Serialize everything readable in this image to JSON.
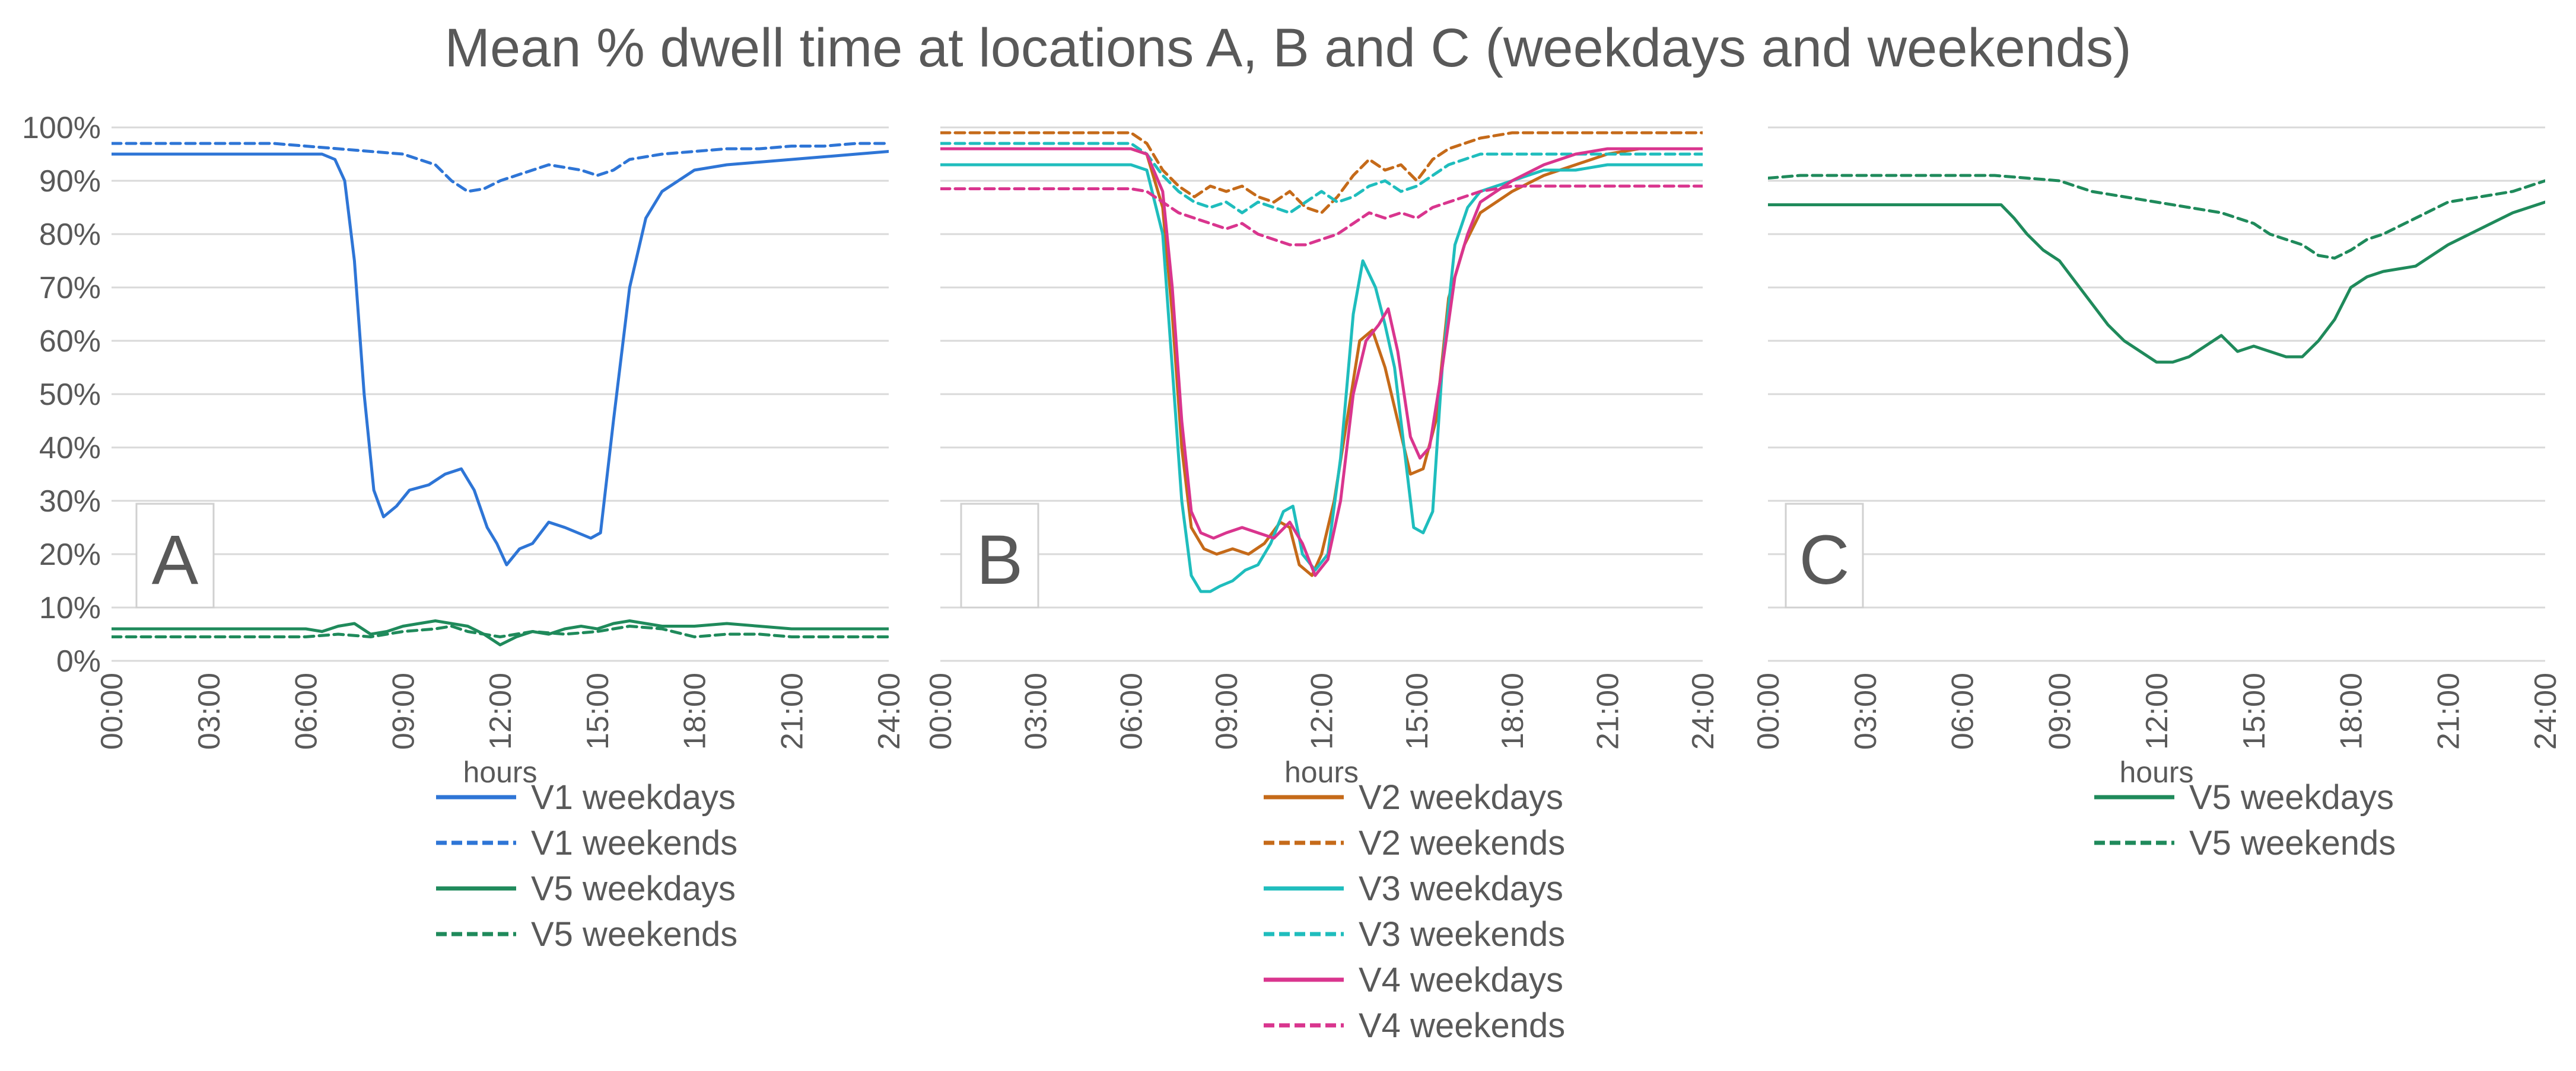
{
  "chart_title": "Mean % dwell time at locations A, B and C (weekdays and weekends)",
  "chart_data": [
    {
      "type": "line",
      "panel": "A",
      "xlabel": "hours",
      "ylabel": "",
      "ylim": [
        0,
        100
      ],
      "xlim": [
        0,
        24
      ],
      "x_ticks": [
        "00:00",
        "03:00",
        "06:00",
        "09:00",
        "12:00",
        "15:00",
        "18:00",
        "21:00",
        "24:00"
      ],
      "y_ticks": [
        "0%",
        "10%",
        "20%",
        "30%",
        "40%",
        "50%",
        "60%",
        "70%",
        "80%",
        "90%",
        "100%"
      ],
      "grid": true,
      "legend_position": "bottom",
      "series": [
        {
          "name": "V1 weekdays",
          "color": "#2e75d6",
          "dash": "solid",
          "x": [
            0,
            5,
            6.5,
            6.9,
            7.2,
            7.5,
            7.8,
            8.1,
            8.4,
            8.8,
            9.2,
            9.8,
            10.3,
            10.8,
            11.2,
            11.6,
            11.9,
            12.2,
            12.6,
            13,
            13.5,
            14,
            14.4,
            14.8,
            15.1,
            15.5,
            16,
            16.5,
            17,
            18,
            19,
            20,
            21,
            22,
            23,
            24
          ],
          "values": [
            95,
            95,
            95,
            94,
            90,
            75,
            50,
            32,
            27,
            29,
            32,
            33,
            35,
            36,
            32,
            25,
            22,
            18,
            21,
            22,
            26,
            25,
            24,
            23,
            24,
            45,
            70,
            83,
            88,
            92,
            93,
            93.5,
            94,
            94.5,
            95,
            95.5
          ]
        },
        {
          "name": "V1 weekends",
          "color": "#2e75d6",
          "dash": "dashed",
          "x": [
            0,
            5,
            6,
            7,
            8,
            9,
            10,
            10.5,
            11,
            11.5,
            12,
            12.5,
            13,
            13.5,
            14,
            14.5,
            15,
            15.5,
            16,
            17,
            18,
            19,
            20,
            21,
            22,
            23,
            24
          ],
          "values": [
            97,
            97,
            96.5,
            96,
            95.5,
            95,
            93,
            90,
            88,
            88.5,
            90,
            91,
            92,
            93,
            92.5,
            92,
            91,
            92,
            94,
            95,
            95.5,
            96,
            96,
            96.5,
            96.5,
            97,
            97
          ]
        },
        {
          "name": "V5 weekdays",
          "color": "#1f8a5b",
          "dash": "solid",
          "x": [
            0,
            6,
            6.5,
            7,
            7.5,
            8,
            8.5,
            9,
            9.5,
            10,
            10.5,
            11,
            11.5,
            12,
            12.5,
            13,
            13.5,
            14,
            14.5,
            15,
            15.5,
            16,
            16.5,
            17,
            18,
            19,
            20,
            21,
            22,
            23,
            24
          ],
          "values": [
            6,
            6,
            5.5,
            6.5,
            7,
            5,
            5.5,
            6.5,
            7,
            7.5,
            7,
            6.5,
            5,
            3,
            4.5,
            5.5,
            5,
            6,
            6.5,
            6,
            7,
            7.5,
            7,
            6.5,
            6.5,
            7,
            6.5,
            6,
            6,
            6,
            6
          ]
        },
        {
          "name": "V5 weekends",
          "color": "#1f8a5b",
          "dash": "dashed",
          "x": [
            0,
            6,
            7,
            8,
            9,
            10,
            10.5,
            11,
            11.5,
            12,
            12.5,
            13,
            14,
            15,
            16,
            17,
            18,
            19,
            20,
            21,
            22,
            23,
            24
          ],
          "values": [
            4.5,
            4.5,
            5,
            4.5,
            5.5,
            6,
            6.5,
            5.5,
            5,
            4.5,
            5,
            5.5,
            5,
            5.5,
            6.5,
            6,
            4.5,
            5,
            5,
            4.5,
            4.5,
            4.5,
            4.5
          ]
        }
      ]
    },
    {
      "type": "line",
      "panel": "B",
      "xlabel": "hours",
      "ylabel": "",
      "ylim": [
        0,
        100
      ],
      "xlim": [
        0,
        24
      ],
      "x_ticks": [
        "00:00",
        "03:00",
        "06:00",
        "09:00",
        "12:00",
        "15:00",
        "18:00",
        "21:00",
        "24:00"
      ],
      "y_ticks": [
        "0%",
        "10%",
        "20%",
        "30%",
        "40%",
        "50%",
        "60%",
        "70%",
        "80%",
        "90%",
        "100%"
      ],
      "grid": true,
      "legend_position": "bottom",
      "series": [
        {
          "name": "V2 weekdays",
          "color": "#c56a19",
          "dash": "solid",
          "x": [
            0,
            6,
            6.5,
            7,
            7.3,
            7.6,
            7.9,
            8.3,
            8.7,
            9.2,
            9.7,
            10.2,
            10.7,
            11,
            11.3,
            11.7,
            12,
            12.4,
            12.8,
            13.2,
            13.6,
            14,
            14.4,
            14.8,
            15.2,
            15.6,
            16,
            16.5,
            17,
            18,
            19,
            20,
            21,
            22,
            23,
            24
          ],
          "values": [
            96,
            96,
            95,
            85,
            65,
            40,
            25,
            21,
            20,
            21,
            20,
            22,
            26,
            25,
            18,
            16,
            20,
            30,
            45,
            60,
            62,
            55,
            45,
            35,
            36,
            45,
            68,
            78,
            84,
            88,
            91,
            93,
            95,
            96,
            96,
            96
          ]
        },
        {
          "name": "V2 weekends",
          "color": "#c56a19",
          "dash": "dashed",
          "x": [
            0,
            6,
            6.5,
            7,
            7.5,
            8,
            8.5,
            9,
            9.5,
            10,
            10.5,
            11,
            11.5,
            12,
            12.5,
            13,
            13.5,
            14,
            14.5,
            15,
            15.5,
            16,
            17,
            18,
            19,
            20,
            21,
            22,
            23,
            24
          ],
          "values": [
            99,
            99,
            97,
            92,
            89,
            87,
            89,
            88,
            89,
            87,
            86,
            88,
            85,
            84,
            87,
            91,
            94,
            92,
            93,
            90,
            94,
            96,
            98,
            99,
            99,
            99,
            99,
            99,
            99,
            99
          ]
        },
        {
          "name": "V3 weekdays",
          "color": "#1fbdbd",
          "dash": "solid",
          "x": [
            0,
            6,
            6.5,
            7,
            7.3,
            7.6,
            7.9,
            8.2,
            8.5,
            8.8,
            9.2,
            9.6,
            10,
            10.4,
            10.8,
            11.1,
            11.4,
            11.8,
            12.2,
            12.6,
            13,
            13.3,
            13.7,
            14,
            14.3,
            14.6,
            14.9,
            15.2,
            15.5,
            15.8,
            16.2,
            16.6,
            17,
            18,
            19,
            20,
            21,
            22,
            23,
            24
          ],
          "values": [
            93,
            93,
            92,
            80,
            55,
            30,
            16,
            13,
            13,
            14,
            15,
            17,
            18,
            22,
            28,
            29,
            20,
            17,
            20,
            38,
            65,
            75,
            70,
            63,
            55,
            40,
            25,
            24,
            28,
            55,
            78,
            85,
            88,
            90,
            92,
            92,
            93,
            93,
            93,
            93
          ]
        },
        {
          "name": "V3 weekends",
          "color": "#1fbdbd",
          "dash": "dashed",
          "x": [
            0,
            6,
            6.5,
            7,
            7.5,
            8,
            8.5,
            9,
            9.5,
            10,
            10.5,
            11,
            11.5,
            12,
            12.5,
            13,
            13.5,
            14,
            14.5,
            15,
            15.5,
            16,
            16.5,
            17,
            18,
            19,
            20,
            21,
            22,
            23,
            24
          ],
          "values": [
            97,
            97,
            95,
            91,
            88,
            86,
            85,
            86,
            84,
            86,
            85,
            84,
            86,
            88,
            86,
            87,
            89,
            90,
            88,
            89,
            91,
            93,
            94,
            95,
            95,
            95,
            95,
            95,
            95,
            95,
            95
          ]
        },
        {
          "name": "V4 weekdays",
          "color": "#d9358e",
          "dash": "solid",
          "x": [
            0,
            6,
            6.5,
            7,
            7.3,
            7.6,
            7.9,
            8.2,
            8.6,
            9,
            9.5,
            10,
            10.5,
            11,
            11.4,
            11.8,
            12.2,
            12.6,
            13,
            13.4,
            13.8,
            14.1,
            14.4,
            14.8,
            15.1,
            15.4,
            15.8,
            16.2,
            16.6,
            17,
            18,
            19,
            20,
            21,
            22,
            23,
            24
          ],
          "values": [
            96,
            96,
            95,
            88,
            70,
            45,
            28,
            24,
            23,
            24,
            25,
            24,
            23,
            26,
            22,
            16,
            19,
            30,
            50,
            60,
            63,
            66,
            58,
            42,
            38,
            40,
            55,
            72,
            80,
            86,
            90,
            93,
            95,
            96,
            96,
            96,
            96
          ]
        },
        {
          "name": "V4 weekends",
          "color": "#d9358e",
          "dash": "dashed",
          "x": [
            0,
            6,
            6.5,
            7,
            7.5,
            8,
            8.5,
            9,
            9.5,
            10,
            10.5,
            11,
            11.5,
            12,
            12.5,
            13,
            13.5,
            14,
            14.5,
            15,
            15.5,
            16,
            16.5,
            17,
            18,
            19,
            20,
            21,
            22,
            23,
            24
          ],
          "values": [
            88.5,
            88.5,
            88,
            86,
            84,
            83,
            82,
            81,
            82,
            80,
            79,
            78,
            78,
            79,
            80,
            82,
            84,
            83,
            84,
            83,
            85,
            86,
            87,
            88,
            89,
            89,
            89,
            89,
            89,
            89,
            89
          ]
        }
      ]
    },
    {
      "type": "line",
      "panel": "C",
      "xlabel": "hours",
      "ylabel": "",
      "ylim": [
        0,
        100
      ],
      "xlim": [
        0,
        24
      ],
      "x_ticks": [
        "00:00",
        "03:00",
        "06:00",
        "09:00",
        "12:00",
        "15:00",
        "18:00",
        "21:00",
        "24:00"
      ],
      "y_ticks": [
        "0%",
        "10%",
        "20%",
        "30%",
        "40%",
        "50%",
        "60%",
        "70%",
        "80%",
        "90%",
        "100%"
      ],
      "grid": true,
      "legend_position": "bottom",
      "series": [
        {
          "name": "V5 weekdays",
          "color": "#1f8a5b",
          "dash": "solid",
          "x": [
            0,
            7.2,
            7.6,
            8,
            8.5,
            9,
            9.5,
            10,
            10.5,
            11,
            11.5,
            12,
            12.5,
            13,
            13.5,
            14,
            14.5,
            15,
            15.5,
            16,
            16.5,
            17,
            17.5,
            18,
            18.5,
            19,
            19.5,
            20,
            20.5,
            21,
            22,
            23,
            24
          ],
          "values": [
            85.5,
            85.5,
            83,
            80,
            77,
            75,
            71,
            67,
            63,
            60,
            58,
            56,
            56,
            57,
            59,
            61,
            58,
            59,
            58,
            57,
            57,
            60,
            64,
            70,
            72,
            73,
            73.5,
            74,
            76,
            78,
            81,
            84,
            86
          ]
        },
        {
          "name": "V5 weekends",
          "color": "#1f8a5b",
          "dash": "dashed",
          "x": [
            0,
            1,
            2,
            3,
            4,
            5,
            6,
            7,
            8,
            9,
            10,
            11,
            12,
            13,
            14,
            15,
            15.5,
            16,
            16.5,
            17,
            17.5,
            18,
            18.5,
            19,
            20,
            21,
            22,
            23,
            24
          ],
          "values": [
            90.5,
            91,
            91,
            91,
            91,
            91,
            91,
            91,
            90.5,
            90,
            88,
            87,
            86,
            85,
            84,
            82,
            80,
            79,
            78,
            76,
            75.5,
            77,
            79,
            80,
            83,
            86,
            87,
            88,
            90
          ]
        }
      ]
    }
  ]
}
